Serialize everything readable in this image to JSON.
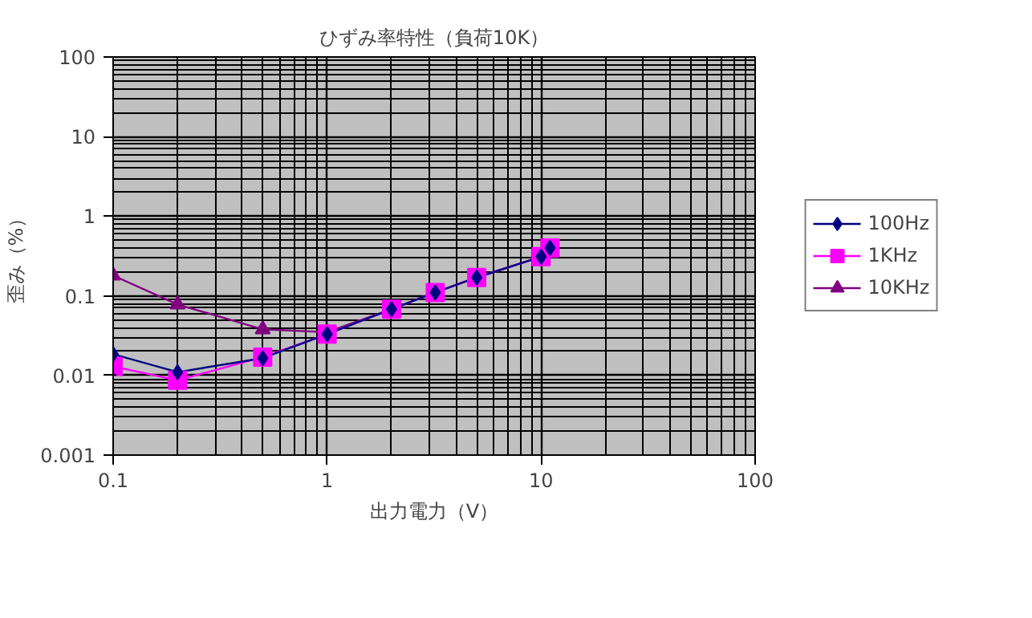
{
  "chart_data": {
    "type": "line",
    "title": "ひずみ率特性（負荷10K）",
    "xlabel": "出力電力（V）",
    "ylabel": "歪み（%）",
    "log": "xy",
    "grid": true,
    "legend": "right",
    "xlim": [
      0.1,
      100
    ],
    "xticks": [
      0.1,
      1,
      10,
      100
    ],
    "ylim": [
      0.001,
      100
    ],
    "yticks": [
      0.001,
      0.01,
      0.1,
      1,
      10,
      100
    ],
    "x": [
      0.1,
      0.2,
      0.5,
      1,
      2,
      3.2,
      5,
      10,
      11
    ],
    "series": [
      {
        "name": "100Hz",
        "color": "#000080",
        "marker": "diamond",
        "values": [
          0.0185,
          0.011,
          0.0165,
          0.033,
          0.068,
          0.11,
          0.17,
          0.31,
          0.4
        ]
      },
      {
        "name": "1KHz",
        "color": "#ff00ff",
        "marker": "square",
        "values": [
          0.013,
          0.0087,
          0.017,
          0.033,
          0.068,
          0.11,
          0.17,
          0.31,
          0.4
        ]
      },
      {
        "name": "10KHz",
        "color": "#800080",
        "marker": "triangle",
        "values": [
          0.18,
          0.078,
          0.038,
          0.035,
          0.068,
          0.11,
          0.17,
          0.31,
          0.4
        ]
      }
    ]
  }
}
